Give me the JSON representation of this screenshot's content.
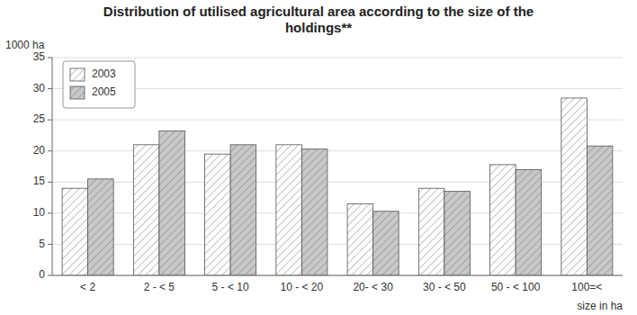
{
  "chart_data": {
    "type": "bar",
    "title": "Distribution of utilised agricultural area according to the size of the\nholdings**",
    "ylabel": "1000 ha",
    "xlabel": "size in ha",
    "categories": [
      "< 2",
      "2 - < 5",
      "5 - < 10",
      "10 - < 20",
      "20- < 30",
      "30 - < 50",
      "50 - < 100",
      "100=<"
    ],
    "series": [
      {
        "name": "2003",
        "color": "white",
        "values": [
          14.0,
          21.0,
          19.5,
          21.0,
          11.5,
          14.0,
          17.8,
          28.5
        ]
      },
      {
        "name": "2005",
        "color": "#c8c8c8",
        "values": [
          15.5,
          23.2,
          21.0,
          20.3,
          10.3,
          13.5,
          17.0,
          20.8
        ]
      }
    ],
    "ylim": [
      0,
      35
    ],
    "yticks": [
      0,
      5,
      10,
      15,
      20,
      25,
      30,
      35
    ],
    "grid": true,
    "legend": "upper left"
  }
}
